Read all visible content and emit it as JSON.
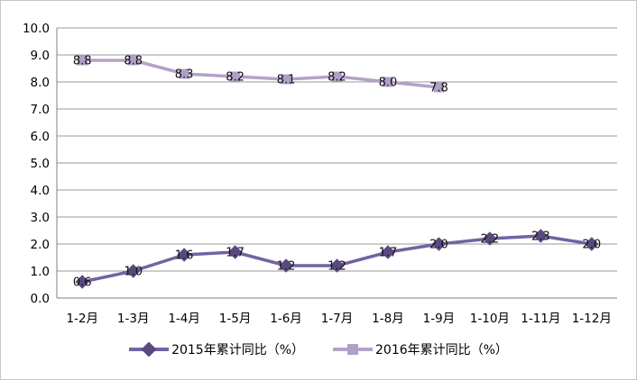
{
  "chart_data": {
    "type": "line",
    "categories": [
      "1-2月",
      "1-3月",
      "1-4月",
      "1-5月",
      "1-6月",
      "1-7月",
      "1-8月",
      "1-9月",
      "1-10月",
      "1-11月",
      "1-12月"
    ],
    "series": [
      {
        "name": "2015年累计同比（%）",
        "values": [
          0.6,
          1.0,
          1.6,
          1.7,
          1.2,
          1.2,
          1.7,
          2.0,
          2.2,
          2.3,
          2.0
        ],
        "labels": [
          "0.6",
          "1.0",
          "1.6",
          "1.7",
          "1.2",
          "1.2",
          "1.7",
          "2.0",
          "2.2",
          "2.3",
          "2.0"
        ],
        "line_color": "#7263a3",
        "marker_color": "#5a4980",
        "marker": "diamond"
      },
      {
        "name": "2016年累计同比（%）",
        "values": [
          8.8,
          8.8,
          8.3,
          8.2,
          8.1,
          8.2,
          8.0,
          7.8
        ],
        "labels": [
          "8.8",
          "8.8",
          "8.3",
          "8.2",
          "8.1",
          "8.2",
          "8.0",
          "7.8"
        ],
        "line_color": "#b3a2c7",
        "marker_color": "#afa0c8",
        "marker": "square"
      }
    ],
    "title": "",
    "xlabel": "",
    "ylabel": "",
    "ylim": [
      0,
      10
    ],
    "ytick_step": 1.0,
    "ytick_labels": [
      "0.0",
      "1.0",
      "2.0",
      "3.0",
      "4.0",
      "5.0",
      "6.0",
      "7.0",
      "8.0",
      "9.0",
      "10.0"
    ],
    "grid": true,
    "data_labels": true,
    "legend_position": "bottom"
  },
  "style_colors": {
    "gridline": "#9a9a9a",
    "axis": "#808080",
    "label_text": "#111111",
    "tick_text": "#000000",
    "frame_border": "#c6c6c6"
  }
}
